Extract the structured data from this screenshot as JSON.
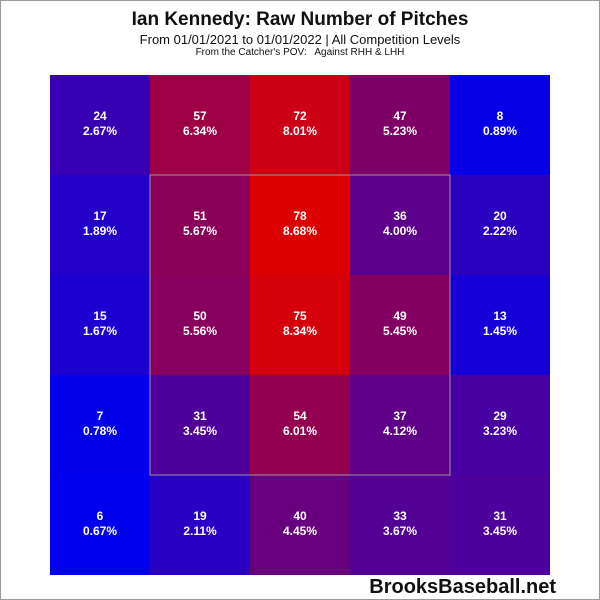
{
  "header": {
    "title": "Ian Kennedy: Raw Number of Pitches",
    "subtitle": "From 01/01/2021 to 01/01/2022 | All Competition Levels",
    "subtitle2": "From the Catcher's POV:   Against RHH & LHH"
  },
  "footer": {
    "brand": "BrooksBaseball.net"
  },
  "colors": {
    "low": "#0000ee",
    "high": "#dd0000",
    "zone_border": "#999999"
  },
  "chart_data": {
    "type": "heatmap",
    "title": "Ian Kennedy: Raw Number of Pitches",
    "rows": 5,
    "cols": 5,
    "strike_zone": "inner 3x3",
    "counts": [
      [
        24,
        57,
        72,
        47,
        8
      ],
      [
        17,
        51,
        78,
        36,
        20
      ],
      [
        15,
        50,
        75,
        49,
        13
      ],
      [
        7,
        31,
        54,
        37,
        29
      ],
      [
        6,
        19,
        40,
        33,
        31
      ]
    ],
    "percents": [
      [
        "2.67%",
        "6.34%",
        "8.01%",
        "5.23%",
        "0.89%"
      ],
      [
        "1.89%",
        "5.67%",
        "8.68%",
        "4.00%",
        "2.22%"
      ],
      [
        "1.67%",
        "5.56%",
        "8.34%",
        "5.45%",
        "1.45%"
      ],
      [
        "0.78%",
        "3.45%",
        "6.01%",
        "4.12%",
        "3.23%"
      ],
      [
        "0.67%",
        "2.11%",
        "4.45%",
        "3.67%",
        "3.45%"
      ]
    ]
  }
}
